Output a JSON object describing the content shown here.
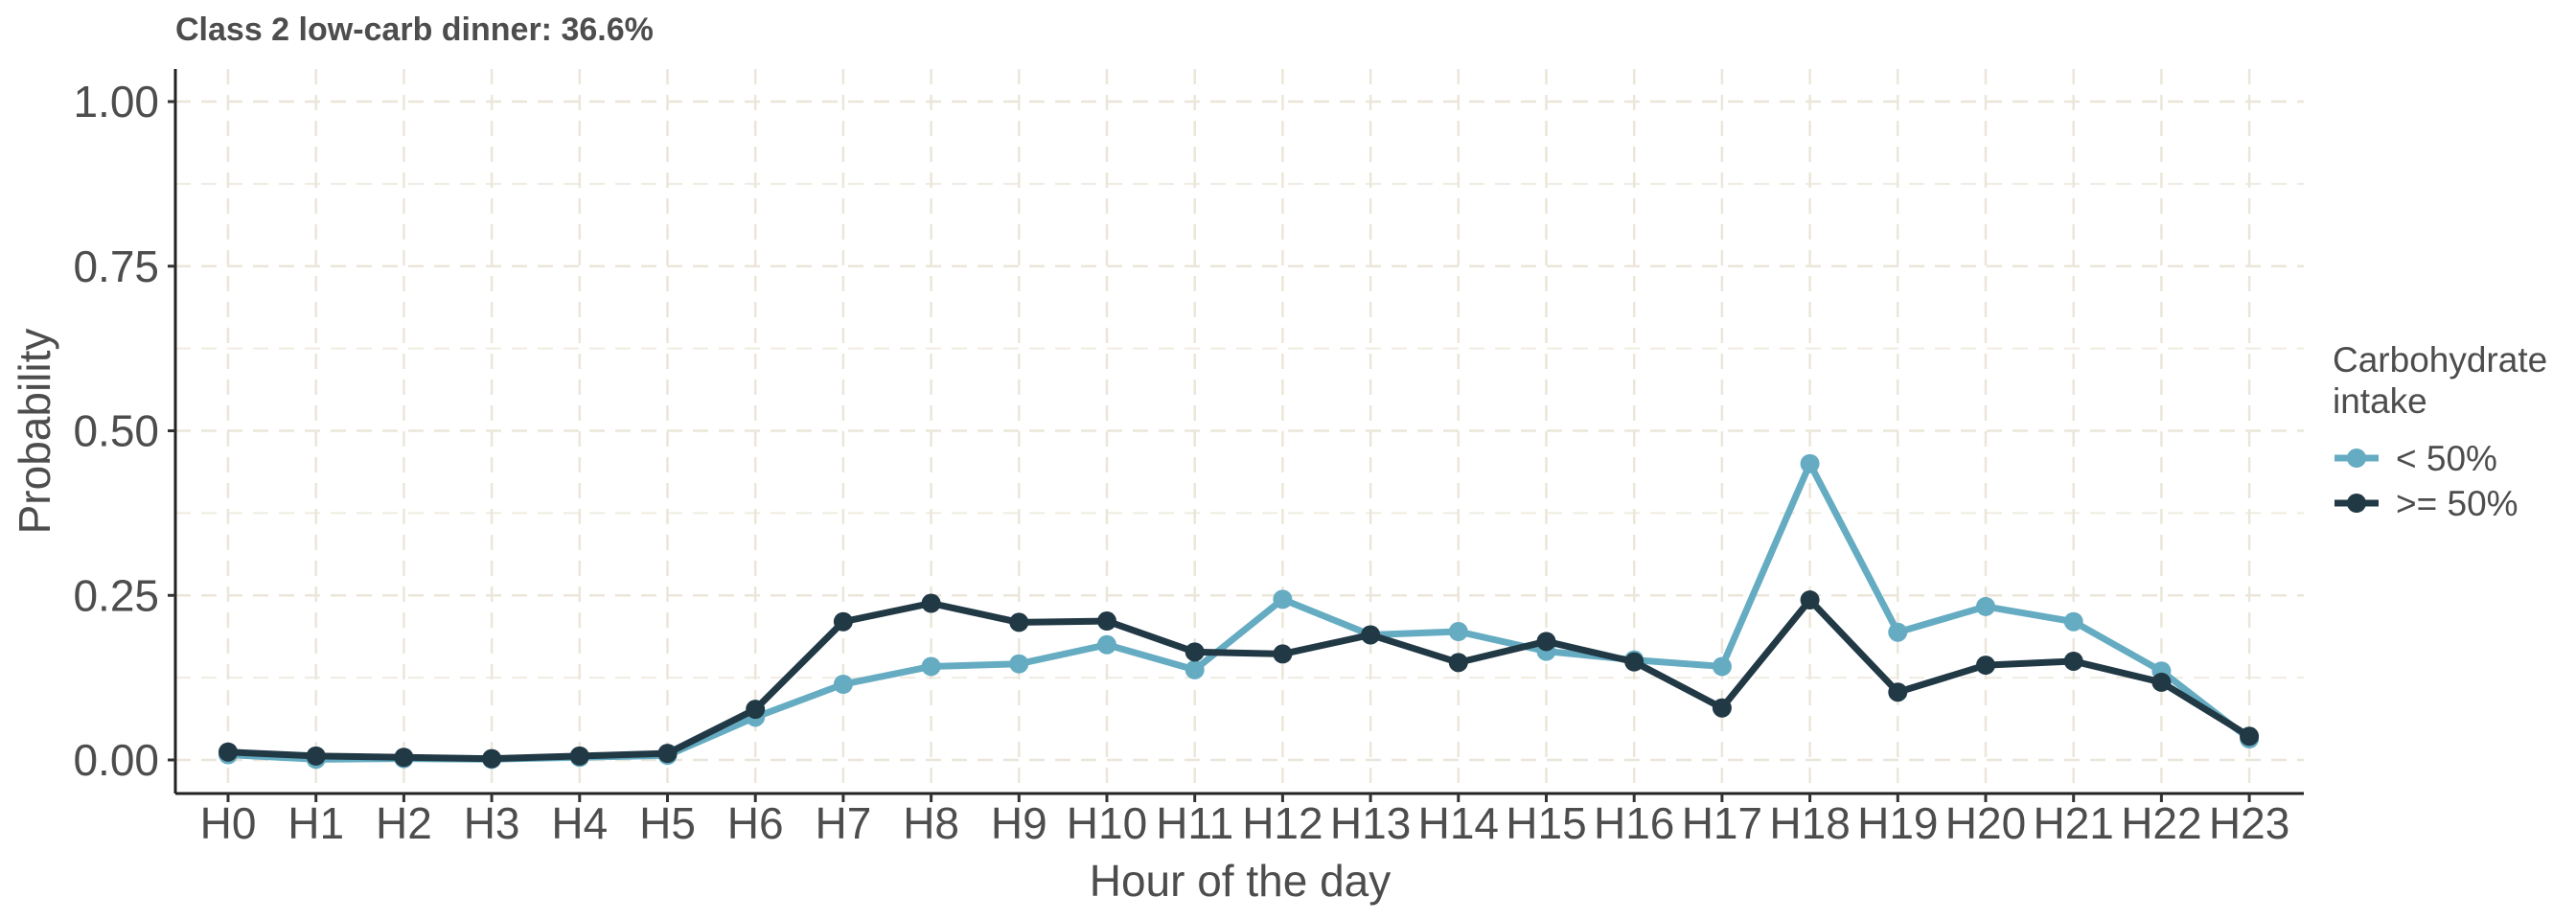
{
  "chart_data": {
    "type": "line",
    "title": "Class 2 low-carb dinner: 36.6%",
    "xlabel": "Hour of the day",
    "ylabel": "Probability",
    "ylim": [
      0,
      1
    ],
    "yticks": [
      "0.00",
      "0.25",
      "0.50",
      "0.75",
      "1.00"
    ],
    "ytick_values": [
      0,
      0.25,
      0.5,
      0.75,
      1.0
    ],
    "grid": true,
    "legend_placement": "right",
    "legend_title": [
      "Carbohydrate",
      "intake"
    ],
    "categories": [
      "H0",
      "H1",
      "H2",
      "H3",
      "H4",
      "H5",
      "H6",
      "H7",
      "H8",
      "H9",
      "H10",
      "H11",
      "H12",
      "H13",
      "H14",
      "H15",
      "H16",
      "H17",
      "H18",
      "H19",
      "H20",
      "H21",
      "H22",
      "H23"
    ],
    "series": [
      {
        "name": "< 50%",
        "color": "#65acc2",
        "values": [
          0.008,
          0.001,
          0.002,
          0.001,
          0.004,
          0.007,
          0.065,
          0.115,
          0.142,
          0.146,
          0.175,
          0.137,
          0.244,
          0.19,
          0.195,
          0.165,
          0.152,
          0.142,
          0.45,
          0.194,
          0.233,
          0.21,
          0.135,
          0.032
        ]
      },
      {
        "name": ">= 50%",
        "color": "#213845",
        "values": [
          0.012,
          0.006,
          0.004,
          0.002,
          0.006,
          0.01,
          0.077,
          0.21,
          0.238,
          0.209,
          0.211,
          0.164,
          0.161,
          0.19,
          0.148,
          0.18,
          0.149,
          0.079,
          0.243,
          0.103,
          0.144,
          0.15,
          0.118,
          0.036
        ]
      }
    ]
  }
}
